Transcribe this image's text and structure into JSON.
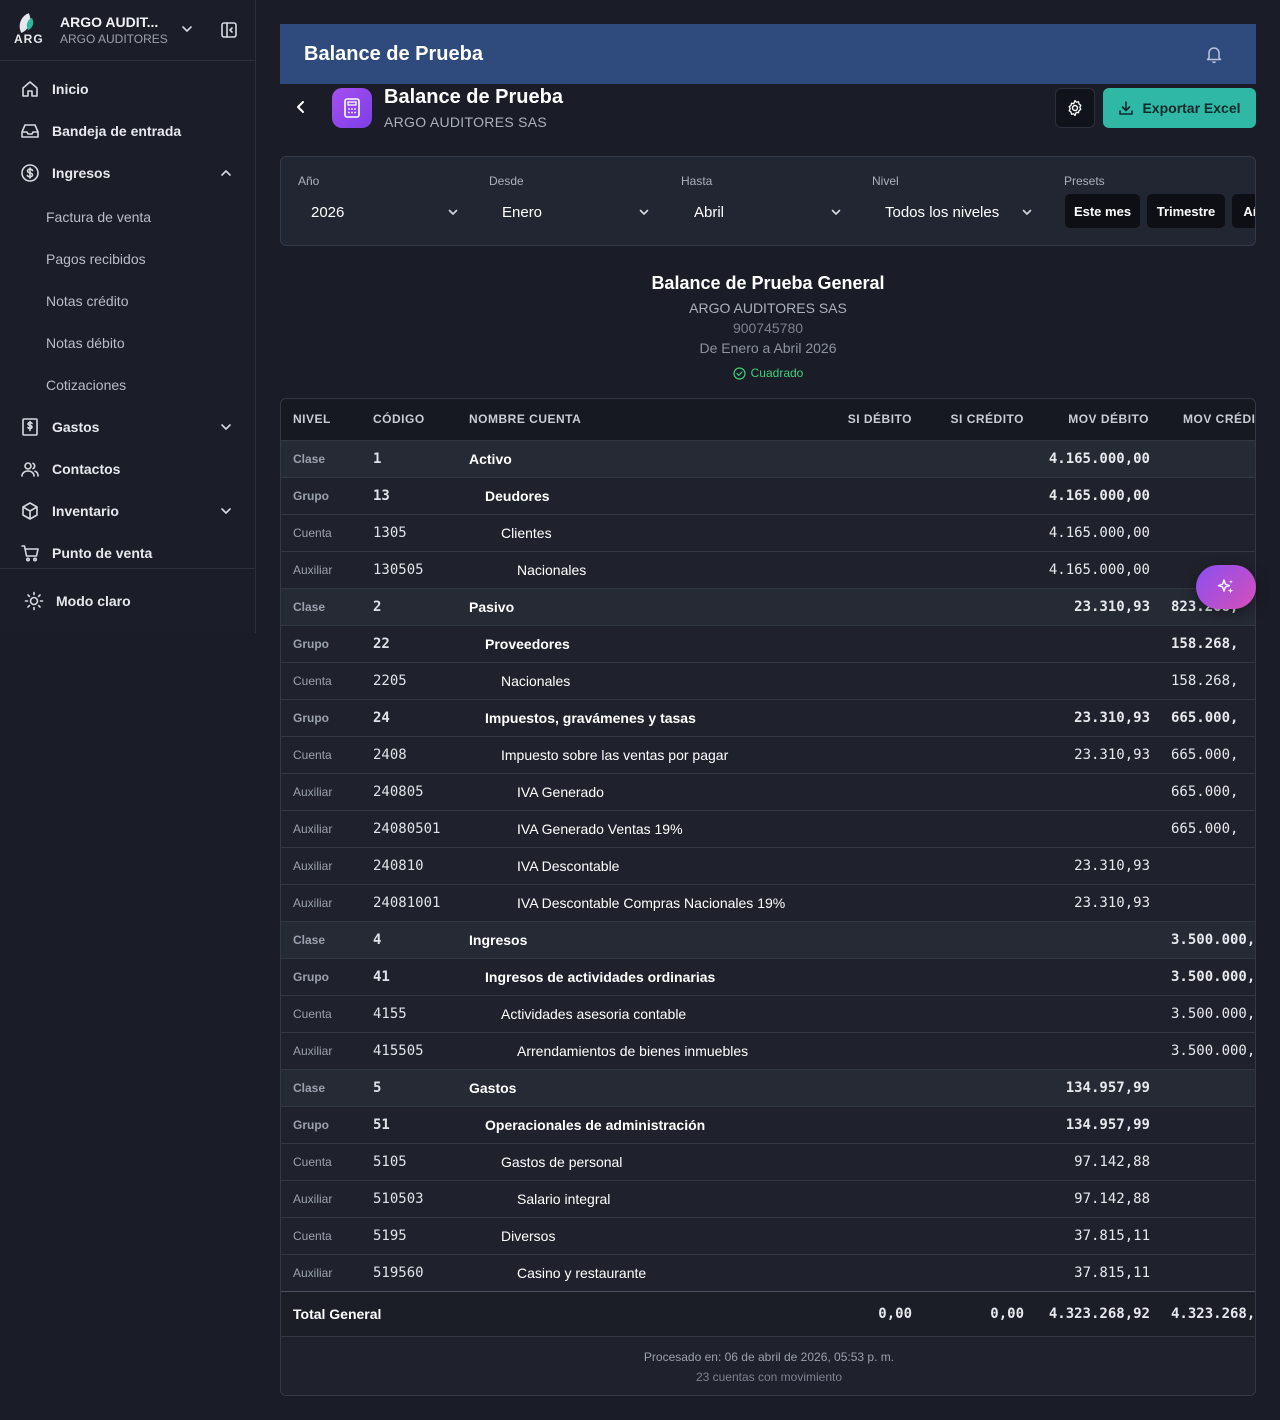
{
  "sidebar": {
    "org_name": "ARGO AUDIT...",
    "org_sub": "ARGO AUDITORES",
    "logo_text": "ARG",
    "items": [
      {
        "label": "Inicio",
        "icon": "home-icon"
      },
      {
        "label": "Bandeja de entrada",
        "icon": "inbox-icon"
      },
      {
        "label": "Ingresos",
        "icon": "dollar-circle-icon",
        "expanded": true
      },
      {
        "label": "Gastos",
        "icon": "receipt-icon"
      },
      {
        "label": "Contactos",
        "icon": "users-icon"
      },
      {
        "label": "Inventario",
        "icon": "box-icon"
      },
      {
        "label": "Punto de venta",
        "icon": "cart-icon"
      }
    ],
    "sub_items": [
      "Factura de venta",
      "Pagos recibidos",
      "Notas crédito",
      "Notas débito",
      "Cotizaciones"
    ],
    "theme_toggle": "Modo claro"
  },
  "header": {
    "title": "Balance de Prueba"
  },
  "page": {
    "title": "Balance de Prueba",
    "subtitle": "ARGO AUDITORES SAS",
    "export_label": "Exportar Excel"
  },
  "filters": {
    "year_label": "Año",
    "year_value": "2026",
    "from_label": "Desde",
    "from_value": "Enero",
    "to_label": "Hasta",
    "to_value": "Abril",
    "level_label": "Nivel",
    "level_value": "Todos los niveles",
    "presets_label": "Presets",
    "presets": [
      "Este mes",
      "Trimestre",
      "Año"
    ]
  },
  "report": {
    "title": "Balance de Prueba General",
    "company": "ARGO AUDITORES SAS",
    "nit": "900745780",
    "period": "De Enero a Abril 2026",
    "status": "Cuadrado",
    "status_color": "#3ecf7a"
  },
  "table": {
    "headers": [
      "NIVEL",
      "CÓDIGO",
      "NOMBRE CUENTA",
      "SI DÉBITO",
      "SI CRÉDITO",
      "MOV DÉBITO",
      "MOV CRÉDI"
    ],
    "rows": [
      {
        "nivel": "Clase",
        "codigo": "1",
        "nombre": "Activo",
        "mov_debito": "4.165.000,00",
        "mov_credito": ""
      },
      {
        "nivel": "Grupo",
        "codigo": "13",
        "nombre": "Deudores",
        "mov_debito": "4.165.000,00",
        "mov_credito": ""
      },
      {
        "nivel": "Cuenta",
        "codigo": "1305",
        "nombre": "Clientes",
        "mov_debito": "4.165.000,00",
        "mov_credito": ""
      },
      {
        "nivel": "Auxiliar",
        "codigo": "130505",
        "nombre": "Nacionales",
        "mov_debito": "4.165.000,00",
        "mov_credito": ""
      },
      {
        "nivel": "Clase",
        "codigo": "2",
        "nombre": "Pasivo",
        "mov_debito": "23.310,93",
        "mov_credito": "823.268,"
      },
      {
        "nivel": "Grupo",
        "codigo": "22",
        "nombre": "Proveedores",
        "mov_debito": "",
        "mov_credito": "158.268,"
      },
      {
        "nivel": "Cuenta",
        "codigo": "2205",
        "nombre": "Nacionales",
        "mov_debito": "",
        "mov_credito": "158.268,"
      },
      {
        "nivel": "Grupo",
        "codigo": "24",
        "nombre": "Impuestos, gravámenes y tasas",
        "mov_debito": "23.310,93",
        "mov_credito": "665.000,"
      },
      {
        "nivel": "Cuenta",
        "codigo": "2408",
        "nombre": "Impuesto sobre las ventas por pagar",
        "mov_debito": "23.310,93",
        "mov_credito": "665.000,"
      },
      {
        "nivel": "Auxiliar",
        "codigo": "240805",
        "nombre": "IVA Generado",
        "mov_debito": "",
        "mov_credito": "665.000,"
      },
      {
        "nivel": "Auxiliar",
        "codigo": "24080501",
        "nombre": "IVA Generado Ventas 19%",
        "mov_debito": "",
        "mov_credito": "665.000,"
      },
      {
        "nivel": "Auxiliar",
        "codigo": "240810",
        "nombre": "IVA Descontable",
        "mov_debito": "23.310,93",
        "mov_credito": ""
      },
      {
        "nivel": "Auxiliar",
        "codigo": "24081001",
        "nombre": "IVA Descontable Compras Nacionales 19%",
        "mov_debito": "23.310,93",
        "mov_credito": ""
      },
      {
        "nivel": "Clase",
        "codigo": "4",
        "nombre": "Ingresos",
        "mov_debito": "",
        "mov_credito": "3.500.000,"
      },
      {
        "nivel": "Grupo",
        "codigo": "41",
        "nombre": "Ingresos de actividades ordinarias",
        "mov_debito": "",
        "mov_credito": "3.500.000,"
      },
      {
        "nivel": "Cuenta",
        "codigo": "4155",
        "nombre": "Actividades asesoria contable",
        "mov_debito": "",
        "mov_credito": "3.500.000,"
      },
      {
        "nivel": "Auxiliar",
        "codigo": "415505",
        "nombre": "Arrendamientos de bienes inmuebles",
        "mov_debito": "",
        "mov_credito": "3.500.000,"
      },
      {
        "nivel": "Clase",
        "codigo": "5",
        "nombre": "Gastos",
        "mov_debito": "134.957,99",
        "mov_credito": ""
      },
      {
        "nivel": "Grupo",
        "codigo": "51",
        "nombre": "Operacionales de administración",
        "mov_debito": "134.957,99",
        "mov_credito": ""
      },
      {
        "nivel": "Cuenta",
        "codigo": "5105",
        "nombre": "Gastos de personal",
        "mov_debito": "97.142,88",
        "mov_credito": ""
      },
      {
        "nivel": "Auxiliar",
        "codigo": "510503",
        "nombre": "Salario integral",
        "mov_debito": "97.142,88",
        "mov_credito": ""
      },
      {
        "nivel": "Cuenta",
        "codigo": "5195",
        "nombre": "Diversos",
        "mov_debito": "37.815,11",
        "mov_credito": ""
      },
      {
        "nivel": "Auxiliar",
        "codigo": "519560",
        "nombre": "Casino y restaurante",
        "mov_debito": "37.815,11",
        "mov_credito": ""
      }
    ],
    "total": {
      "label": "Total General",
      "si_debito": "0,00",
      "si_credito": "0,00",
      "mov_debito": "4.323.268,92",
      "mov_credito": "4.323.268,"
    },
    "footer_processed": "Procesado en: 06 de abril de 2026, 05:53 p. m.",
    "footer_count": "23 cuentas con movimiento"
  },
  "colors": {
    "header_bg": "#2f4b7e",
    "accent_teal": "#2fb8a6",
    "icon_purple": "#a54ff0"
  }
}
